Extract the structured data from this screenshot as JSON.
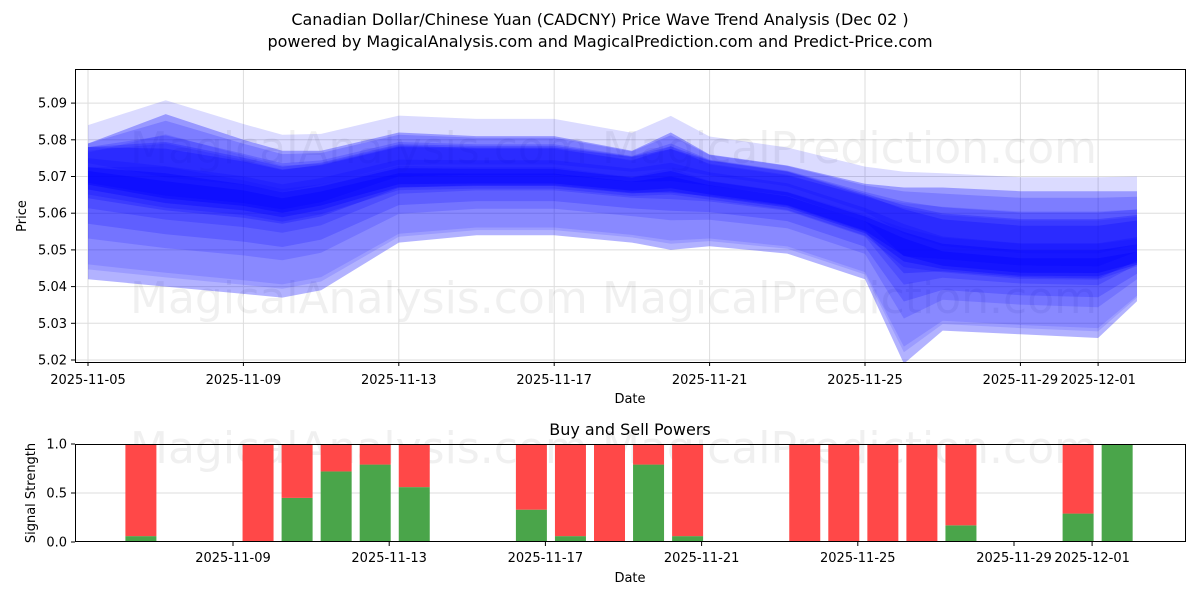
{
  "header": {
    "title": "Canadian Dollar/Chinese Yuan (CADCNY) Price Wave Trend Analysis (Dec 02 )",
    "subtitle": "powered by MagicalAnalysis.com and MagicalPrediction.com and Predict-Price.com"
  },
  "watermarks": [
    "MagicalAnalysis.com",
    "MagicalPrediction.com"
  ],
  "colors": {
    "wave": "#0000ff",
    "buy": "#4aa54a",
    "sell": "#ff4848",
    "grid": "#dddddd"
  },
  "chart_data": [
    {
      "type": "area",
      "title": "",
      "xlabel": "Date",
      "ylabel": "Price",
      "ylim": [
        5.019,
        5.099
      ],
      "yticks": [
        "5.02",
        "5.03",
        "5.04",
        "5.05",
        "5.06",
        "5.07",
        "5.08",
        "5.09"
      ],
      "xticks": [
        "2025-11-05",
        "2025-11-09",
        "2025-11-13",
        "2025-11-17",
        "2025-11-21",
        "2025-11-25",
        "2025-11-29",
        "2025-12-01"
      ],
      "grid": true,
      "description": "Overlapping translucent blue wave bands showing price trend projections",
      "x": [
        "2025-11-05",
        "2025-11-07",
        "2025-11-09",
        "2025-11-10",
        "2025-11-11",
        "2025-11-13",
        "2025-11-15",
        "2025-11-17",
        "2025-11-19",
        "2025-11-20",
        "2025-11-21",
        "2025-11-23",
        "2025-11-25",
        "2025-11-26",
        "2025-11-27",
        "2025-11-29",
        "2025-12-01",
        "2025-12-02"
      ],
      "series": [
        {
          "name": "wave-center",
          "values": [
            5.072,
            5.068,
            5.066,
            5.064,
            5.066,
            5.071,
            5.071,
            5.071,
            5.069,
            5.07,
            5.068,
            5.065,
            5.058,
            5.053,
            5.049,
            5.047,
            5.047,
            5.049
          ]
        },
        {
          "name": "wave-upper",
          "values": [
            5.082,
            5.09,
            5.083,
            5.08,
            5.08,
            5.085,
            5.084,
            5.084,
            5.08,
            5.085,
            5.079,
            5.076,
            5.071,
            5.07,
            5.07,
            5.069,
            5.069,
            5.069
          ]
        },
        {
          "name": "wave-lower",
          "values": [
            5.045,
            5.043,
            5.041,
            5.04,
            5.042,
            5.055,
            5.057,
            5.057,
            5.055,
            5.053,
            5.054,
            5.052,
            5.045,
            5.022,
            5.031,
            5.03,
            5.029,
            5.039
          ]
        }
      ]
    },
    {
      "type": "bar",
      "title": "Buy and Sell Powers",
      "xlabel": "Date",
      "ylabel": "Signal Strength",
      "ylim": [
        0,
        1
      ],
      "yticks": [
        "0.0",
        "0.5",
        "1.0"
      ],
      "xticks": [
        "2025-11-09",
        "2025-11-13",
        "2025-11-17",
        "2025-11-21",
        "2025-11-25",
        "2025-11-29",
        "2025-12-01"
      ],
      "stacked": true,
      "categories": [
        "2025-11-07",
        "2025-11-10",
        "2025-11-11",
        "2025-11-12",
        "2025-11-13",
        "2025-11-14",
        "2025-11-17",
        "2025-11-18",
        "2025-11-19",
        "2025-11-20",
        "2025-11-21",
        "2025-11-24",
        "2025-11-25",
        "2025-11-26",
        "2025-11-27",
        "2025-11-28",
        "2025-12-01",
        "2025-12-02"
      ],
      "series": [
        {
          "name": "Buy",
          "color": "#4aa54a",
          "values": [
            0.06,
            0.0,
            0.45,
            0.72,
            0.79,
            0.56,
            0.33,
            0.06,
            0.0,
            0.79,
            0.06,
            0.0,
            0.0,
            0.0,
            0.0,
            0.17,
            0.29,
            1.0
          ]
        },
        {
          "name": "Sell",
          "color": "#ff4848",
          "values": [
            0.94,
            1.0,
            0.55,
            0.28,
            0.21,
            0.44,
            0.67,
            0.94,
            1.0,
            0.21,
            0.94,
            1.0,
            1.0,
            1.0,
            1.0,
            0.83,
            0.71,
            0.0
          ]
        }
      ]
    }
  ]
}
